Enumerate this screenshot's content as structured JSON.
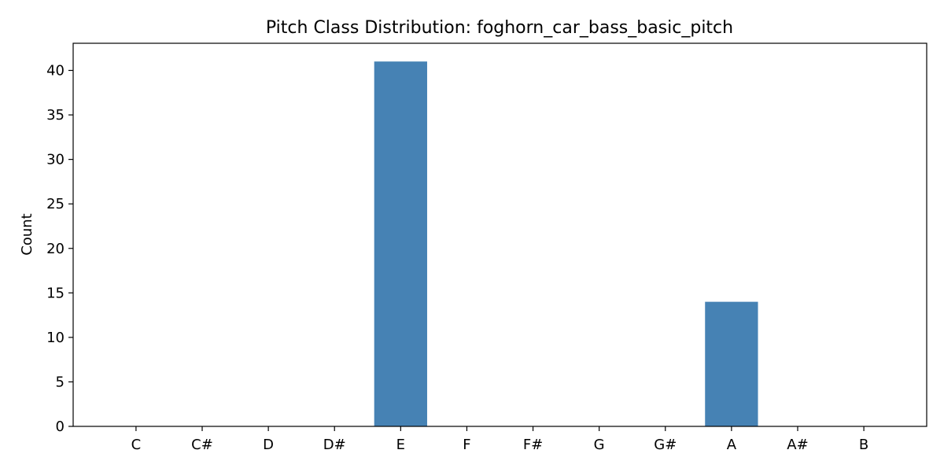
{
  "chart_data": {
    "type": "bar",
    "title": "Pitch Class Distribution: foghorn_car_bass_basic_pitch",
    "xlabel": "",
    "ylabel": "Count",
    "categories": [
      "C",
      "C#",
      "D",
      "D#",
      "E",
      "F",
      "F#",
      "G",
      "G#",
      "A",
      "A#",
      "B"
    ],
    "values": [
      0,
      0,
      0,
      0,
      41,
      0,
      0,
      0,
      0,
      14,
      0,
      0
    ],
    "ylim": [
      0,
      43.05
    ],
    "yticks": [
      0,
      5,
      10,
      15,
      20,
      25,
      30,
      35,
      40
    ],
    "grid": false,
    "bar_color": "#4682b4"
  }
}
